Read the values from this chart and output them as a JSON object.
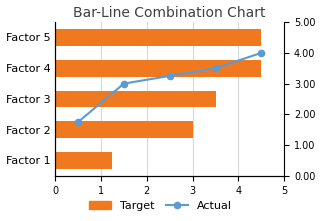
{
  "title": "Bar-Line Combination Chart",
  "categories": [
    "Factor 1",
    "Factor 2",
    "Factor 3",
    "Factor 4",
    "Factor 5"
  ],
  "bar_values": [
    1.25,
    3.0,
    3.5,
    4.5,
    4.5
  ],
  "bar_color": "#F07920",
  "line_color": "#5B9BD5",
  "line_x": [
    0.5,
    1.5,
    2.5,
    3.5,
    4.5
  ],
  "line_y": [
    1.75,
    3.0,
    3.25,
    3.5,
    4.0
  ],
  "bar_xlim": [
    0,
    5
  ],
  "bar_xticks": [
    0,
    1,
    2,
    3,
    4,
    5
  ],
  "right_ylim": [
    0.0,
    5.0
  ],
  "right_yticks": [
    0.0,
    1.0,
    2.0,
    3.0,
    4.0,
    5.0
  ],
  "background_color": "#FFFFFF",
  "title_fontsize": 10,
  "tick_fontsize": 7,
  "label_fontsize": 8,
  "legend_target": "Target",
  "legend_actual": "Actual",
  "grid_color": "#D9D9D9",
  "bar_height": 0.55
}
